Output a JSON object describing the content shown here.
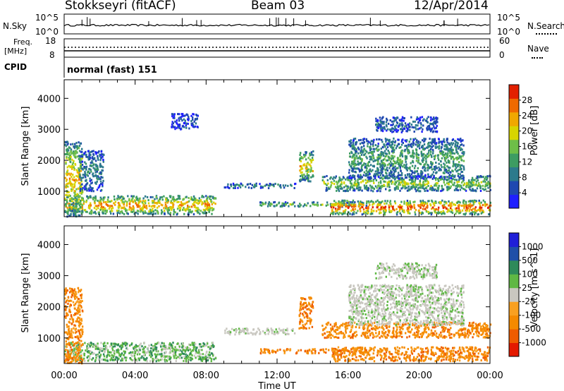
{
  "header": {
    "station": "Stokkseyri (fitACF)",
    "beam": "Beam 03",
    "date": "12/Apr/2014"
  },
  "top_panels": {
    "nsky_label": "N.Sky",
    "nsky_ticks": [
      "10^5",
      "10^0"
    ],
    "nsearch_label": "N.Search",
    "nsearch_ticks": [
      "10^5",
      "10^0"
    ],
    "freq_label_1": "Freq.",
    "freq_label_2": "[MHz]",
    "freq_ticks": [
      "18",
      "8"
    ],
    "nave_label": "Nave",
    "nave_ticks": [
      "60",
      "0"
    ],
    "cpid_label": "CPID",
    "cpid_value": "normal (fast) 151"
  },
  "chart_data": [
    {
      "type": "heatmap",
      "ylabel": "Slant Range [km]",
      "xlabel": "Time UT",
      "x_ticks": [
        "00:00",
        "04:00",
        "08:00",
        "12:00",
        "16:00",
        "20:00",
        "00:00"
      ],
      "x_range_hours": [
        0,
        24
      ],
      "y_ticks": [
        1000,
        2000,
        3000,
        4000
      ],
      "ylim": [
        180,
        4600
      ],
      "colorbar": {
        "label": "Power [dB]",
        "ticks": [
          4,
          8,
          12,
          16,
          20,
          24,
          28
        ],
        "range": [
          0,
          32
        ],
        "colors": [
          "#1f1fff",
          "#1f48b0",
          "#2c7a8c",
          "#3d9c62",
          "#6ebe48",
          "#d8d400",
          "#f0a800",
          "#ef6a00",
          "#e22000"
        ]
      },
      "echo_regions": [
        {
          "t": [
            0.0,
            8.5
          ],
          "r": [
            250,
            850
          ],
          "level": 0.6
        },
        {
          "t": [
            0.0,
            1.0
          ],
          "r": [
            180,
            2600
          ],
          "level": 0.55
        },
        {
          "t": [
            0.8,
            2.2
          ],
          "r": [
            1000,
            2300
          ],
          "level": 0.2
        },
        {
          "t": [
            9.0,
            13.0
          ],
          "r": [
            1100,
            1250
          ],
          "level": 0.25
        },
        {
          "t": [
            11.0,
            17.0
          ],
          "r": [
            500,
            650
          ],
          "level": 0.35
        },
        {
          "t": [
            13.2,
            14.0
          ],
          "r": [
            1300,
            2300
          ],
          "level": 0.5
        },
        {
          "t": [
            14.5,
            24.0
          ],
          "r": [
            1000,
            1500
          ],
          "level": 0.4
        },
        {
          "t": [
            15.0,
            24.0
          ],
          "r": [
            250,
            700
          ],
          "level": 0.7
        },
        {
          "t": [
            16.0,
            22.5
          ],
          "r": [
            1400,
            2700
          ],
          "level": 0.3
        },
        {
          "t": [
            17.5,
            21.0
          ],
          "r": [
            2900,
            3400
          ],
          "level": 0.15
        },
        {
          "t": [
            6.0,
            7.5
          ],
          "r": [
            3000,
            3500
          ],
          "level": 0.1
        }
      ]
    },
    {
      "type": "heatmap",
      "ylabel": "Slant Range [km]",
      "xlabel": "Time UT",
      "x_ticks": [
        "00:00",
        "04:00",
        "08:00",
        "12:00",
        "16:00",
        "20:00",
        "00:00"
      ],
      "x_range_hours": [
        0,
        24
      ],
      "y_ticks": [
        1000,
        2000,
        3000,
        4000
      ],
      "ylim": [
        180,
        4600
      ],
      "colorbar": {
        "label": "Velocity [m s^-1]",
        "ticks": [
          "-1000",
          "-500",
          "-100",
          "-25",
          "25",
          "100",
          "500",
          "1000"
        ],
        "colors": [
          "#e41a00",
          "#ef5c00",
          "#f58a00",
          "#f9a020",
          "#c9c7c0",
          "#5fb844",
          "#2e8a5a",
          "#1f4fa8",
          "#1f1fd8"
        ]
      },
      "echo_regions": [
        {
          "t": [
            0.0,
            8.5
          ],
          "r": [
            250,
            850
          ],
          "cls": "green"
        },
        {
          "t": [
            0.0,
            1.0
          ],
          "r": [
            180,
            2600
          ],
          "cls": "orange"
        },
        {
          "t": [
            9.0,
            13.0
          ],
          "r": [
            1100,
            1300
          ],
          "cls": "gray"
        },
        {
          "t": [
            11.0,
            17.0
          ],
          "r": [
            500,
            650
          ],
          "cls": "orange"
        },
        {
          "t": [
            13.2,
            14.0
          ],
          "r": [
            1300,
            2300
          ],
          "cls": "orange"
        },
        {
          "t": [
            14.5,
            24.0
          ],
          "r": [
            1000,
            1500
          ],
          "cls": "orange"
        },
        {
          "t": [
            15.0,
            24.0
          ],
          "r": [
            250,
            700
          ],
          "cls": "orange"
        },
        {
          "t": [
            16.0,
            22.5
          ],
          "r": [
            1400,
            2700
          ],
          "cls": "gray"
        },
        {
          "t": [
            17.5,
            21.0
          ],
          "r": [
            2900,
            3400
          ],
          "cls": "gray"
        }
      ]
    }
  ]
}
